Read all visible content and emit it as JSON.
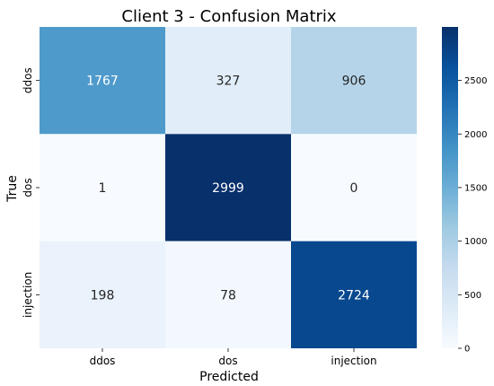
{
  "chart_data": {
    "type": "heatmap",
    "title": "Client 3 - Confusion Matrix",
    "xlabel": "Predicted",
    "ylabel": "True",
    "x_categories": [
      "ddos",
      "dos",
      "injection"
    ],
    "y_categories": [
      "ddos",
      "dos",
      "injection"
    ],
    "values": [
      [
        1767,
        327,
        906
      ],
      [
        1,
        2999,
        0
      ],
      [
        198,
        78,
        2724
      ]
    ],
    "color_range": [
      0,
      2999
    ],
    "colormap": "Blues",
    "colorbar_ticks": [
      0,
      500,
      1000,
      1500,
      2000,
      2500
    ],
    "colors": {
      "low": "#f7fbff",
      "high": "#08306b",
      "text_dark": "#262626",
      "text_light": "#ffffff"
    }
  }
}
